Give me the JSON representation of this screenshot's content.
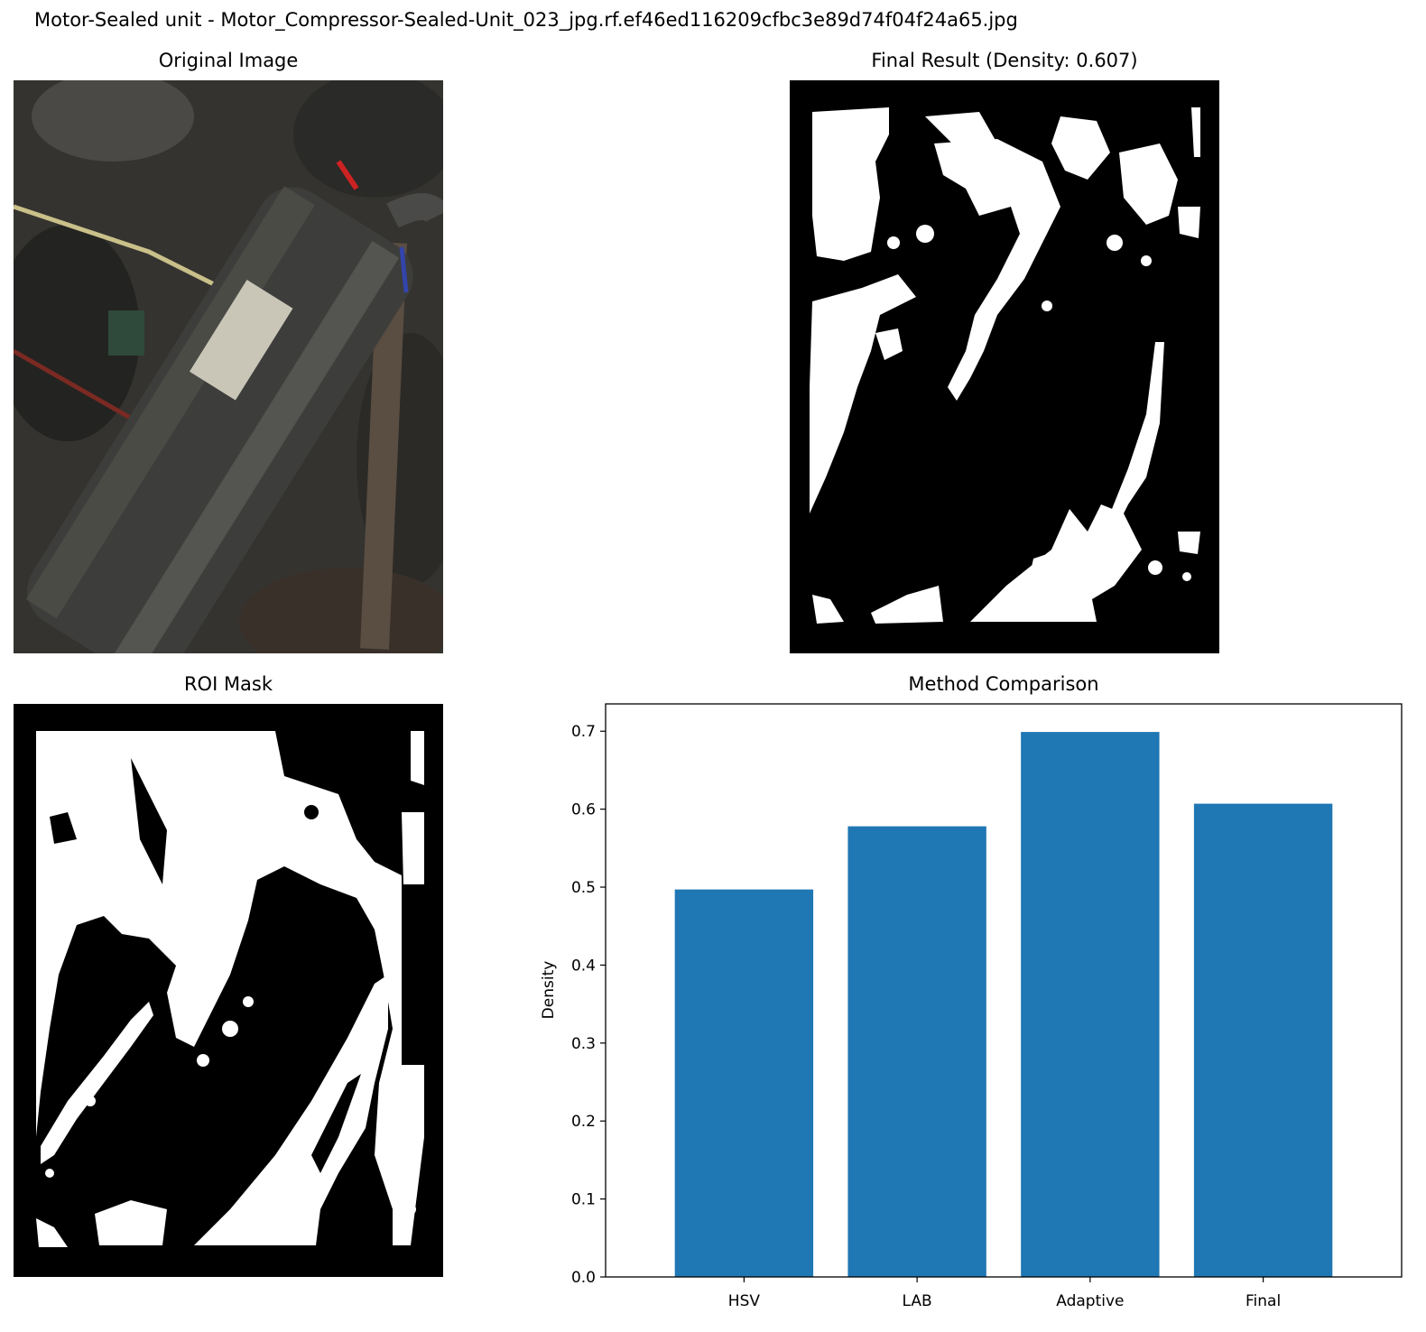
{
  "figure": {
    "suptitle": "Motor-Sealed unit - Motor_Compressor-Sealed-Unit_023_jpg.rf.ef46ed116209cfbc3e89d74f04f24a65.jpg"
  },
  "panels": {
    "original_title": "Original Image",
    "final_title": "Final Result (Density: 0.607)",
    "roi_title": "ROI Mask"
  },
  "colors": {
    "bar": "#1f77b4",
    "mask_fg": "#ffffff",
    "mask_bg": "#000000"
  },
  "chart_data": {
    "type": "bar",
    "title": "Method Comparison",
    "xlabel": "",
    "ylabel": "Density",
    "categories": [
      "HSV",
      "LAB",
      "Adaptive",
      "Final"
    ],
    "values": [
      0.497,
      0.578,
      0.699,
      0.607
    ],
    "ylim": [
      0,
      0.735
    ],
    "yticks": [
      "0.0",
      "0.1",
      "0.2",
      "0.3",
      "0.4",
      "0.5",
      "0.6",
      "0.7"
    ],
    "grid": false,
    "legend": "none"
  }
}
